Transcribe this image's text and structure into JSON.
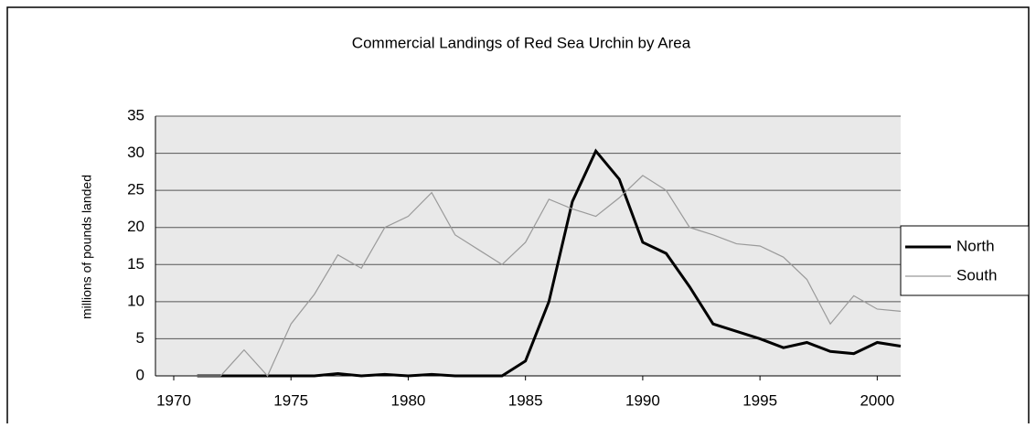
{
  "chart_data": {
    "type": "line",
    "title": "Commercial Landings of Red Sea Urchin by Area",
    "y_label": "millions of pounds landed",
    "x": [
      1971,
      1972,
      1973,
      1974,
      1975,
      1976,
      1977,
      1978,
      1979,
      1980,
      1981,
      1982,
      1983,
      1984,
      1985,
      1986,
      1987,
      1988,
      1989,
      1990,
      1991,
      1992,
      1993,
      1994,
      1995,
      1996,
      1997,
      1998,
      1999,
      2000,
      2001
    ],
    "series": [
      {
        "name": "North",
        "color": "#000000",
        "values": [
          0,
          0,
          0,
          0,
          0,
          0,
          0.3,
          0,
          0.2,
          0,
          0.2,
          0,
          0,
          0,
          2,
          10,
          23.5,
          30.3,
          26.5,
          18,
          16.5,
          12,
          7,
          6,
          5,
          3.8,
          4.5,
          3.3,
          3,
          4.5,
          4
        ]
      },
      {
        "name": "South",
        "color": "#9a9a9a",
        "values": [
          0,
          0,
          3.5,
          0,
          7,
          11,
          16.3,
          14.5,
          20,
          21.5,
          24.7,
          19,
          17,
          15,
          18,
          23.8,
          22.5,
          21.5,
          24,
          27,
          25,
          20,
          19,
          17.8,
          17.5,
          16,
          13,
          7,
          10.8,
          9,
          8.7
        ]
      }
    ],
    "xlim": [
      1970,
      2001
    ],
    "xticks": [
      1970,
      1975,
      1980,
      1985,
      1990,
      1995,
      2000
    ],
    "ylim": [
      0,
      35
    ],
    "yticks": [
      0,
      5,
      10,
      15,
      20,
      25,
      30,
      35
    ],
    "grid": true,
    "legend": "right"
  }
}
